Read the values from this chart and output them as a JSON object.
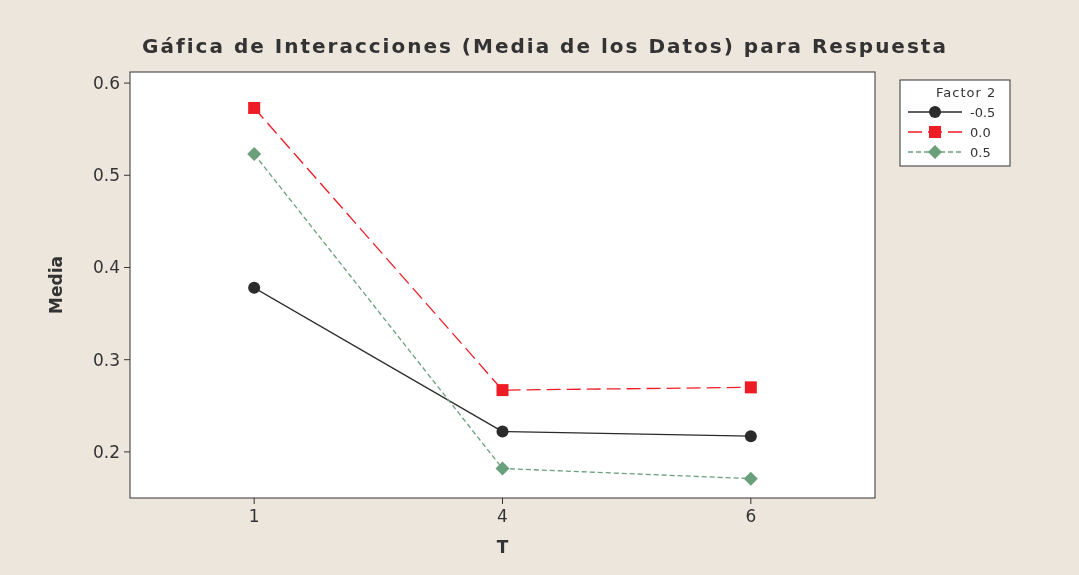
{
  "chart_data": {
    "type": "line",
    "title": "Gáfica de Interacciones (Media de los Datos) para Respuesta",
    "xlabel": "T",
    "ylabel": "Media",
    "legend_title": "Factor 2",
    "legend": "right",
    "categories": [
      "1",
      "4",
      "6"
    ],
    "ylim": [
      0.15,
      0.612
    ],
    "yticks": [
      0.2,
      0.3,
      0.4,
      0.5,
      0.6
    ],
    "grid": false,
    "series": [
      {
        "name": "-0.5",
        "color": "#2b2b2b",
        "marker": "circle",
        "line_style": "solid",
        "values": [
          0.378,
          0.222,
          0.217
        ]
      },
      {
        "name": "0.0",
        "color": "#ee1c25",
        "marker": "square",
        "line_style": "dashed",
        "values": [
          0.573,
          0.267,
          0.27
        ]
      },
      {
        "name": "0.5",
        "color": "#6a9f7c",
        "marker": "diamond",
        "line_style": "dotted",
        "values": [
          0.523,
          0.182,
          0.171
        ]
      }
    ]
  }
}
